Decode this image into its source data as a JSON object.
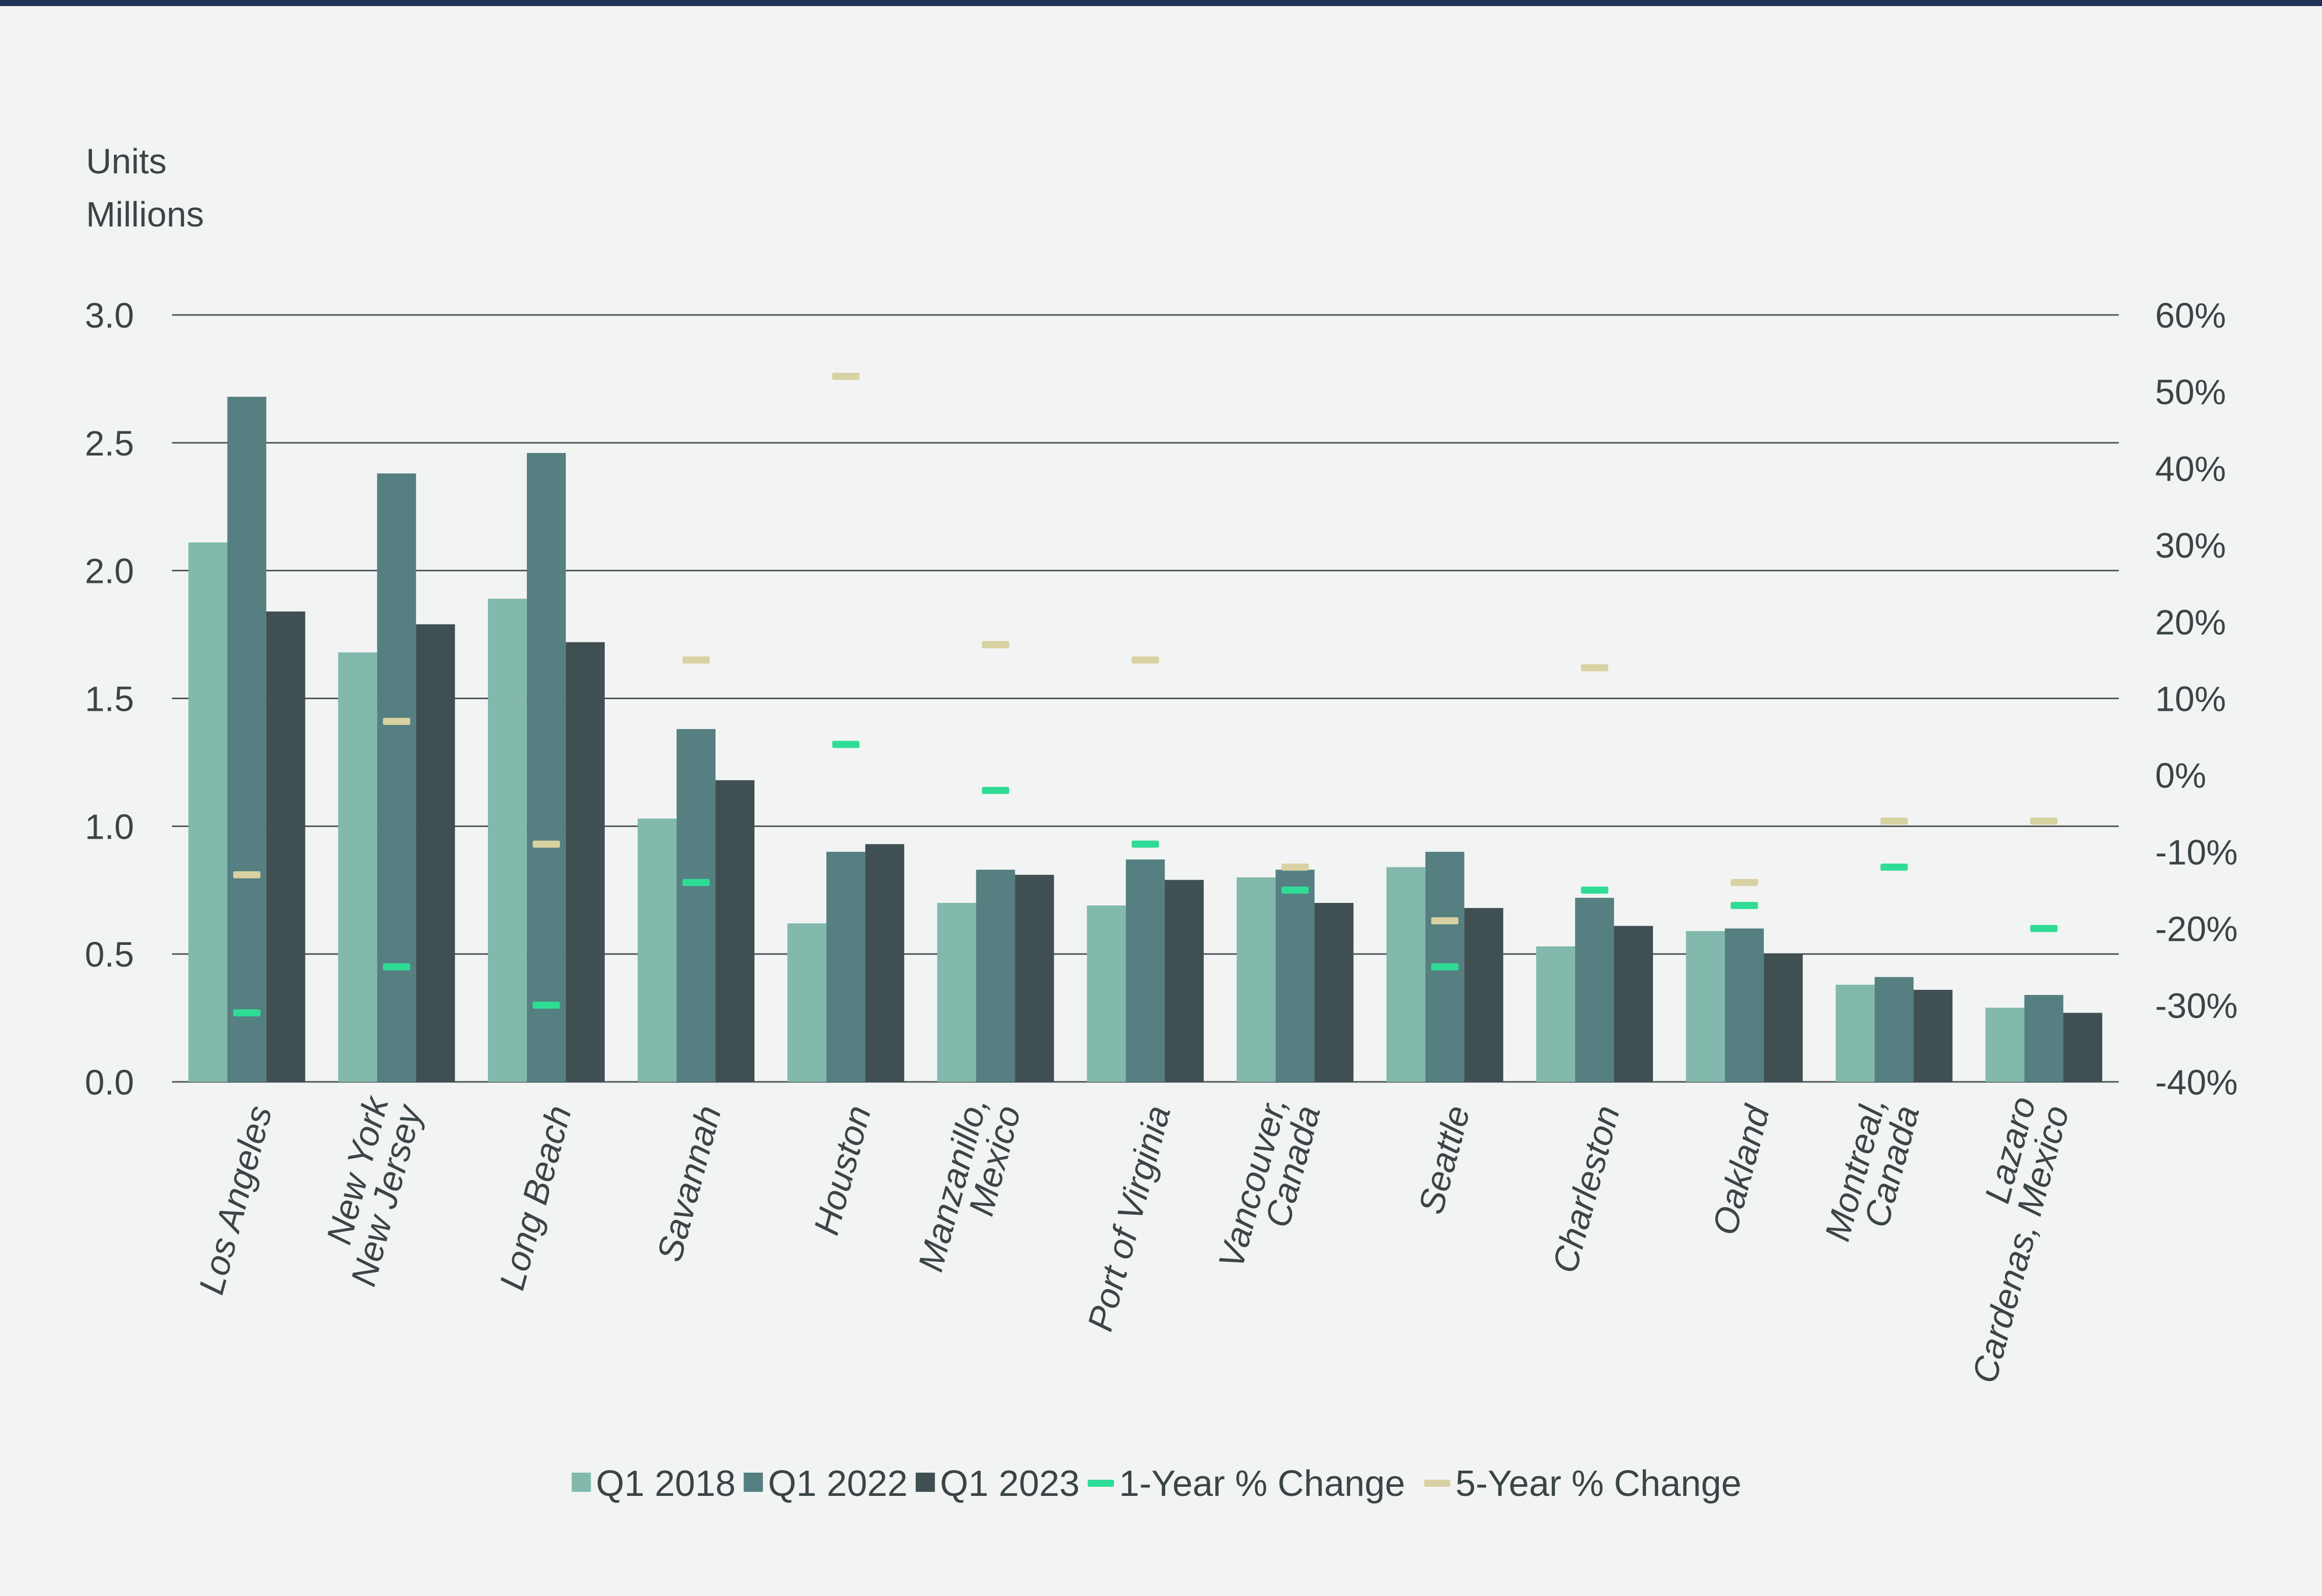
{
  "chart_data": {
    "type": "bar",
    "title": "",
    "y_unit_line1": "Units",
    "y_unit_line2": "Millions",
    "ylim": [
      0,
      3.0
    ],
    "yticks": [
      "0.0",
      "0.5",
      "1.0",
      "1.5",
      "2.0",
      "2.5",
      "3.0"
    ],
    "ytick_values": [
      0,
      0.5,
      1.0,
      1.5,
      2.0,
      2.5,
      3.0
    ],
    "y2lim": [
      -40,
      60
    ],
    "y2ticks": [
      "-40%",
      "-30%",
      "-20%",
      "-10%",
      "0%",
      "10%",
      "20%",
      "30%",
      "40%",
      "50%",
      "60%"
    ],
    "y2tick_values": [
      -40,
      -30,
      -20,
      -10,
      0,
      10,
      20,
      30,
      40,
      50,
      60
    ],
    "categories": [
      [
        "Los Angeles"
      ],
      [
        "New York",
        "New Jersey"
      ],
      [
        "Long Beach"
      ],
      [
        "Savannah"
      ],
      [
        "Houston"
      ],
      [
        "Manzanillo,",
        "Mexico"
      ],
      [
        "Port of Virginia"
      ],
      [
        "Vancouver,",
        "Canada"
      ],
      [
        "Seattle"
      ],
      [
        "Charleston"
      ],
      [
        "Oakland"
      ],
      [
        "Montreal,",
        "Canada"
      ],
      [
        "Lazaro",
        "Cardenas, Mexico"
      ]
    ],
    "series": [
      {
        "name": "Q1 2018",
        "color": "#82b9ac",
        "axis": "left",
        "values": [
          2.11,
          1.68,
          1.89,
          1.03,
          0.62,
          0.7,
          0.69,
          0.8,
          0.84,
          0.53,
          0.59,
          0.38,
          0.29
        ]
      },
      {
        "name": "Q1 2022",
        "color": "#557f80",
        "axis": "left",
        "values": [
          2.68,
          2.38,
          2.46,
          1.38,
          0.9,
          0.83,
          0.87,
          0.83,
          0.9,
          0.72,
          0.6,
          0.41,
          0.34
        ]
      },
      {
        "name": "Q1 2023",
        "color": "#3f4f52",
        "axis": "left",
        "values": [
          1.84,
          1.79,
          1.72,
          1.18,
          0.93,
          0.81,
          0.79,
          0.7,
          0.68,
          0.61,
          0.5,
          0.36,
          0.27
        ]
      }
    ],
    "markers": [
      {
        "name": "1-Year % Change",
        "color": "#2fdc95",
        "axis": "right",
        "values": [
          -31,
          -25,
          -30,
          -14,
          4,
          -2,
          -9,
          -15,
          -25,
          -15,
          -17,
          -12,
          -20
        ]
      },
      {
        "name": "5-Year % Change",
        "color": "#d8d1a2",
        "axis": "right",
        "values": [
          -13,
          7,
          -9,
          15,
          52,
          17,
          15,
          -12,
          -19,
          14,
          -14,
          -6,
          -6
        ]
      }
    ],
    "legend_position": "bottom-center",
    "grid": true
  },
  "colors": {
    "background": "#f2f4f3",
    "top_rule": "#1e3258",
    "gridline": "#4a5254",
    "text": "#3b4547"
  }
}
